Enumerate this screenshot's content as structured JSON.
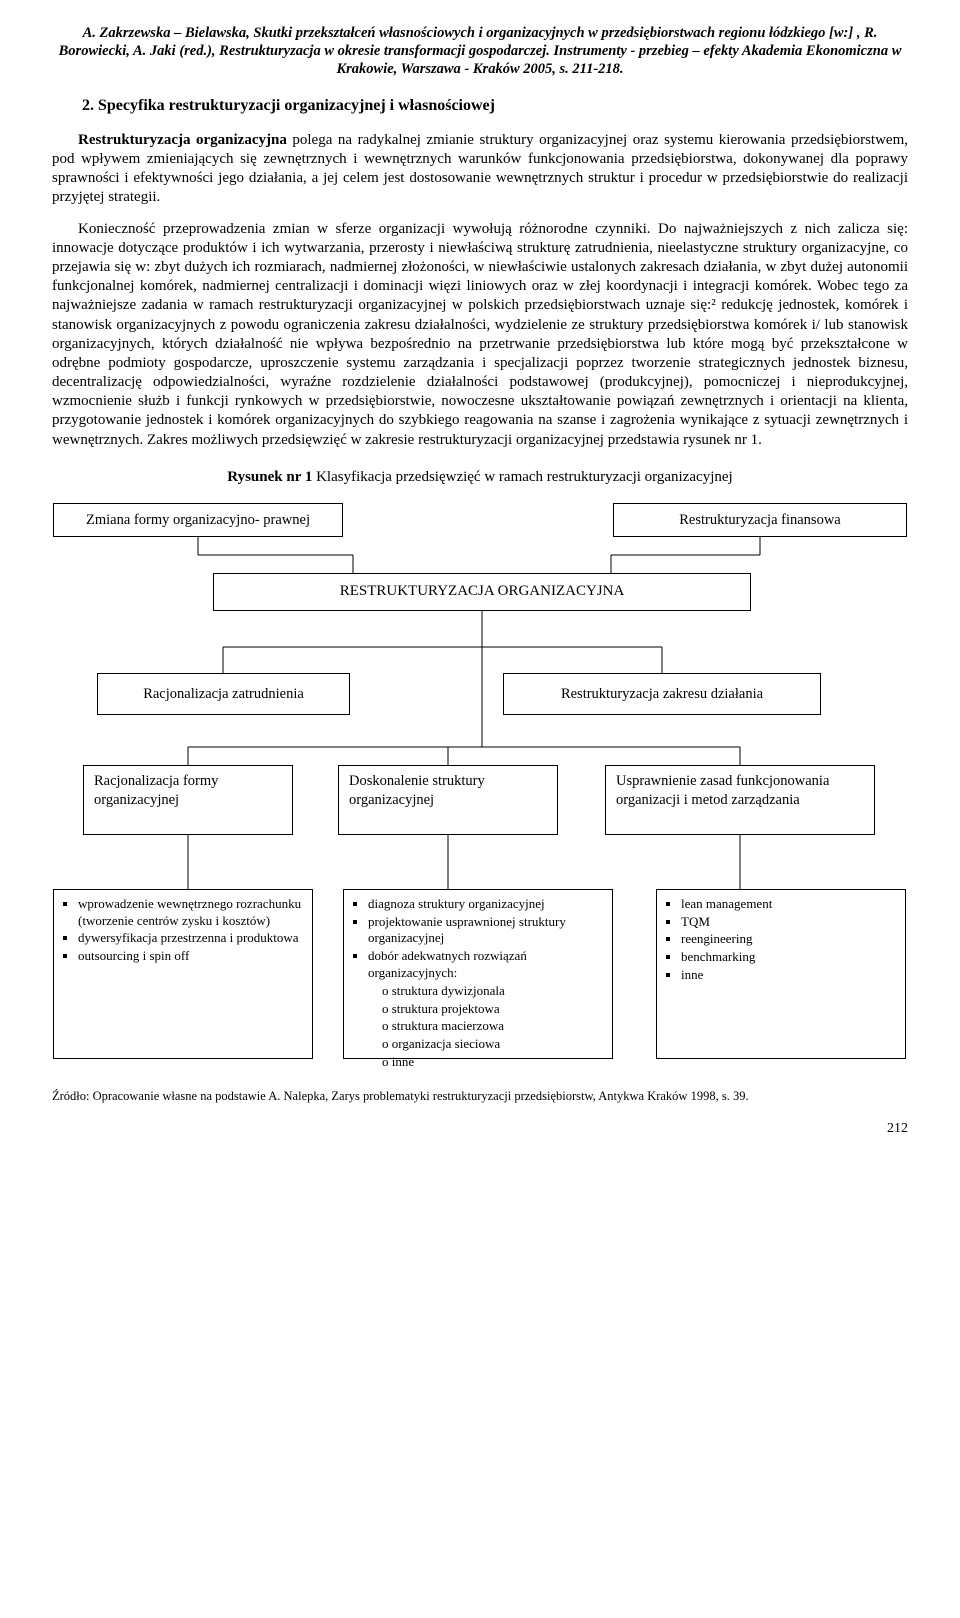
{
  "header": {
    "attribution": "A. Zakrzewska – Bielawska, Skutki przekształceń własnościowych i organizacyjnych w przedsiębiorstwach regionu łódzkiego [w:] , R. Borowiecki, A. Jaki (red.), Restrukturyzacja w okresie transformacji gospodarczej. Instrumenty - przebieg – efekty Akademia Ekonomiczna w Krakowie, Warszawa - Kraków 2005, s. 211-218."
  },
  "section": {
    "heading": "2.  Specyfika restrukturyzacji organizacyjnej i własnościowej",
    "p1_label": "Restrukturyzacja organizacyjna",
    "p1_rest": " polega na radykalnej zmianie struktury organizacyjnej oraz systemu kierowania przedsiębiorstwem, pod wpływem zmieniających się zewnętrznych i wewnętrznych warunków funkcjonowania przedsiębiorstwa, dokonywanej dla poprawy sprawności i efektywności jego działania, a jej celem jest dostosowanie wewnętrznych struktur i procedur w przedsiębiorstwie do realizacji przyjętej strategii.",
    "p2": "Konieczność przeprowadzenia zmian w sferze organizacji wywołują różnorodne czynniki. Do najważniejszych z nich zalicza się: innowacje dotyczące produktów i ich wytwarzania, przerosty i niewłaściwą strukturę zatrudnienia, nieelastyczne struktury organizacyjne, co przejawia się w: zbyt dużych ich rozmiarach, nadmiernej złożoności, w niewłaściwie ustalonych zakresach działania, w zbyt dużej autonomii funkcjonalnej komórek, nadmiernej centralizacji i dominacji więzi liniowych oraz w złej koordynacji i integracji komórek. Wobec tego za najważniejsze zadania w ramach restrukturyzacji organizacyjnej w polskich przedsiębiorstwach uznaje się:² redukcję jednostek, komórek i stanowisk organizacyjnych z powodu ograniczenia zakresu działalności, wydzielenie ze struktury przedsiębiorstwa komórek i/ lub stanowisk organizacyjnych, których działalność nie wpływa bezpośrednio na przetrwanie przedsiębiorstwa lub które mogą być przekształcone w odrębne podmioty gospodarcze, uproszczenie systemu zarządzania i specjalizacji poprzez tworzenie strategicznych jednostek biznesu, decentralizację odpowiedzialności, wyraźne rozdzielenie działalności podstawowej (produkcyjnej), pomocniczej i nieprodukcyjnej, wzmocnienie służb i funkcji rynkowych w przedsiębiorstwie, nowoczesne ukształtowanie powiązań zewnętrznych i orientacji na klienta, przygotowanie jednostek i komórek organizacyjnych do szybkiego reagowania na szanse i zagrożenia wynikające z sytuacji zewnętrznych i wewnętrznych. Zakres możliwych przedsięwzięć w zakresie restrukturyzacji organizacyjnej przedstawia rysunek nr 1."
  },
  "figure": {
    "caption_label": "Rysunek nr 1",
    "caption_rest": " Klasyfikacja przedsięwzięć w ramach restrukturyzacji organizacyjnej",
    "nodes": {
      "top_left": "Zmiana formy organizacyjno- prawnej",
      "top_right": "Restrukturyzacja  finansowa",
      "center": "RESTRUKTURYZACJA   ORGANIZACYJNA",
      "mid_left": "Racjonalizacja zatrudnienia",
      "mid_right": "Restrukturyzacja zakresu działania",
      "l3_left": "Racjonalizacja formy organizacyjnej",
      "l3_mid": "Doskonalenie struktury organizacyjnej",
      "l3_right": "Usprawnienie zasad funkcjonowania organizacji i metod zarządzania"
    },
    "lists": {
      "left": [
        "wprowadzenie wewnętrznego rozrachunku (tworzenie centrów zysku i kosztów)",
        "dywersyfikacja przestrzenna i produktowa",
        "outsourcing i spin off"
      ],
      "mid": [
        "diagnoza struktury organizacyjnej",
        "projektowanie usprawnionej struktury organizacyjnej",
        "dobór adekwatnych rozwiązań organizacyjnych:"
      ],
      "mid_sub": [
        "struktura dywizjonala",
        "struktura projektowa",
        "struktura macierzowa",
        "organizacja sieciowa",
        "inne"
      ],
      "right": [
        "lean management",
        "TQM",
        "reengineering",
        "benchmarking",
        "inne"
      ]
    },
    "connectors": {
      "stroke": "#000000",
      "stroke_width": 1
    }
  },
  "source": "Źródło: Opracowanie własne na podstawie A. Nalepka, Zarys problematyki restrukturyzacji przedsiębiorstw, Antykwa Kraków 1998, s. 39.",
  "page_number": "212"
}
